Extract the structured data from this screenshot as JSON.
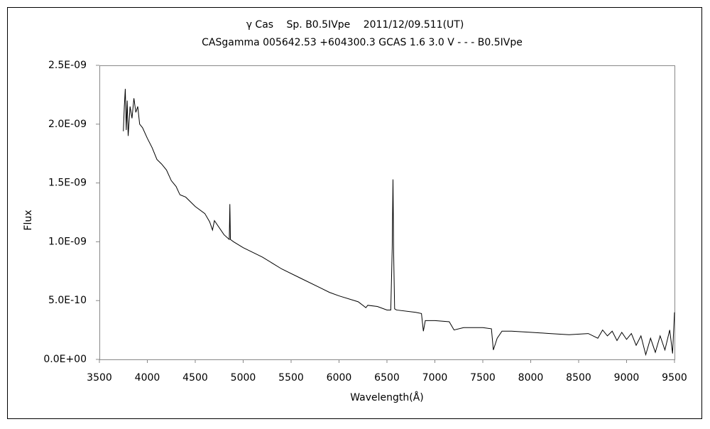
{
  "chart_data": {
    "type": "line",
    "title": "γ Cas　 Sp. B0.5IVpe　 2011/12/09.511(UT)",
    "subtitle": "CASgamma 005642.53 +604300.3 GCAS 1.6 3.0 V - - - B0.5IVpe",
    "xlabel": "Wavelength(Å)",
    "ylabel": "Flux",
    "xlim": [
      3500,
      9500
    ],
    "xticks": [
      3500,
      4000,
      4500,
      5000,
      5500,
      6000,
      6500,
      7000,
      7500,
      8000,
      8500,
      9000,
      9500
    ],
    "ylim": [
      0,
      2.5e-09
    ],
    "yticks": [
      {
        "value": 0,
        "label": "0.0E+00"
      },
      {
        "value": 5e-10,
        "label": "5.0E-10"
      },
      {
        "value": 1e-09,
        "label": "1.0E-09"
      },
      {
        "value": 1.5e-09,
        "label": "1.5E-09"
      },
      {
        "value": 2e-09,
        "label": "2.0E-09"
      },
      {
        "value": 2.5e-09,
        "label": "2.5E-09"
      }
    ],
    "grid": false,
    "series": [
      {
        "name": "Flux",
        "color": "#000000",
        "x": [
          3750,
          3760,
          3770,
          3780,
          3790,
          3800,
          3820,
          3840,
          3860,
          3880,
          3900,
          3920,
          3950,
          4000,
          4050,
          4100,
          4150,
          4200,
          4250,
          4300,
          4340,
          4400,
          4500,
          4600,
          4650,
          4680,
          4700,
          4800,
          4855,
          4861,
          4867,
          4900,
          5000,
          5100,
          5200,
          5400,
          5600,
          5800,
          5900,
          6000,
          6200,
          6280,
          6300,
          6400,
          6500,
          6540,
          6555,
          6563,
          6570,
          6580,
          6600,
          6800,
          6860,
          6880,
          6900,
          7000,
          7150,
          7200,
          7300,
          7500,
          7590,
          7610,
          7650,
          7700,
          7800,
          8000,
          8200,
          8400,
          8600,
          8700,
          8750,
          8800,
          8850,
          8900,
          8950,
          9000,
          9050,
          9100,
          9150,
          9200,
          9250,
          9300,
          9350,
          9400,
          9450,
          9480,
          9500
        ],
        "values": [
          1.94e-09,
          2.15e-09,
          2.3e-09,
          1.95e-09,
          2.2e-09,
          1.9e-09,
          2.15e-09,
          2.05e-09,
          2.22e-09,
          2.1e-09,
          2.15e-09,
          2e-09,
          1.97e-09,
          1.88e-09,
          1.8e-09,
          1.7e-09,
          1.66e-09,
          1.61e-09,
          1.52e-09,
          1.47e-09,
          1.4e-09,
          1.38e-09,
          1.3e-09,
          1.24e-09,
          1.17e-09,
          1.1e-09,
          1.18e-09,
          1.06e-09,
          1.02e-09,
          1.32e-09,
          1.02e-09,
          1e-09,
          9.5e-10,
          9.1e-10,
          8.7e-10,
          7.7e-10,
          6.9e-10,
          6.1e-10,
          5.7e-10,
          5.4e-10,
          4.9e-10,
          4.4e-10,
          4.6e-10,
          4.5e-10,
          4.2e-10,
          4.2e-10,
          9.5e-10,
          1.53e-09,
          9e-10,
          4.3e-10,
          4.2e-10,
          4e-10,
          3.9e-10,
          2.4e-10,
          3.3e-10,
          3.3e-10,
          3.2e-10,
          2.5e-10,
          2.7e-10,
          2.7e-10,
          2.6e-10,
          8e-11,
          1.8e-10,
          2.4e-10,
          2.4e-10,
          2.3e-10,
          2.2e-10,
          2.1e-10,
          2.2e-10,
          1.8e-10,
          2.5e-10,
          2e-10,
          2.4e-10,
          1.6e-10,
          2.3e-10,
          1.7e-10,
          2.2e-10,
          1.2e-10,
          2e-10,
          4e-11,
          1.8e-10,
          6e-11,
          2e-10,
          8e-11,
          2.5e-10,
          5e-11,
          4e-10
        ]
      }
    ]
  }
}
